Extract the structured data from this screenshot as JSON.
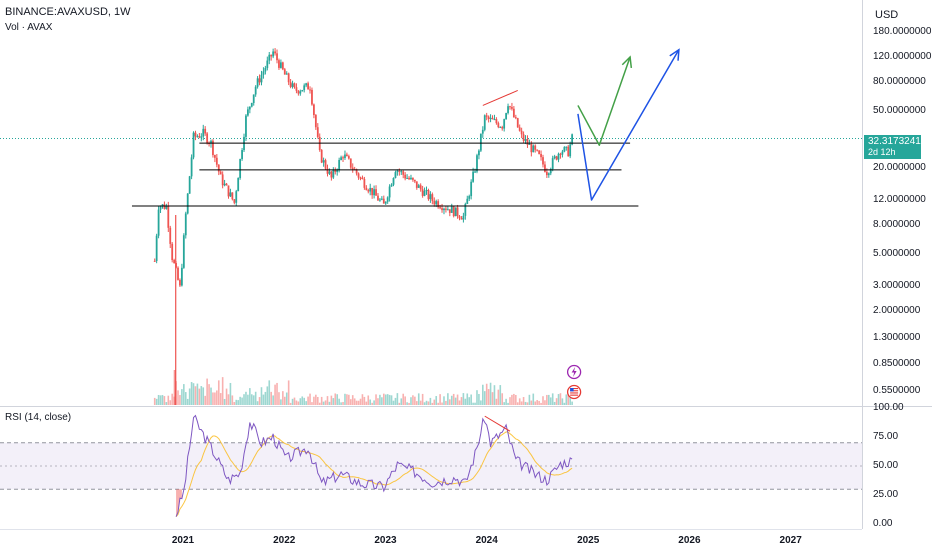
{
  "header": {
    "symbol": "BINANCE:AVAXUSD, 1W",
    "volume_label": "Vol · AVAX",
    "currency": "USD"
  },
  "last_price": {
    "value": "32.3173241",
    "countdown": "2d 12h"
  },
  "price_axis": {
    "labels": [
      "180.0000000",
      "120.0000000",
      "80.0000000",
      "50.0000000",
      "20.0000000",
      "12.0000000",
      "8.0000000",
      "5.0000000",
      "3.0000000",
      "2.0000000",
      "1.3000000",
      "0.8500000",
      "0.5500000"
    ]
  },
  "rsi": {
    "label": "RSI (14, close)",
    "axis_labels": [
      "100.00",
      "75.00",
      "50.00",
      "25.00",
      "0.00"
    ],
    "upper_band": 70,
    "lower_band": 30,
    "middle_band": 50
  },
  "time_axis": {
    "labels": [
      "2021",
      "2022",
      "2023",
      "2024",
      "2025",
      "2026",
      "2027"
    ]
  },
  "colors": {
    "up": "#26a69a",
    "down": "#ef5350",
    "rsi_line": "#7e57c2",
    "rsi_ma": "#fbc02d",
    "projection_green": "#43a047",
    "projection_blue": "#1e53e5",
    "divergence": "#e53935",
    "support_line": "#000000"
  },
  "event_icons": [
    "lightning-icon",
    "us-flag-icon"
  ],
  "chart_data": {
    "type": "candlestick",
    "title": "",
    "y_scale": "log",
    "price_range": [
      0.55,
      180
    ],
    "time_range": [
      "2020-09",
      "2027-12"
    ],
    "weekly_closes": [
      {
        "date": "2020-09-21",
        "close": 4.5
      },
      {
        "date": "2020-10-05",
        "close": 11.0
      },
      {
        "date": "2020-11-02",
        "close": 10.8
      },
      {
        "date": "2020-11-23",
        "close": 4.8
      },
      {
        "date": "2020-12-21",
        "close": 2.9
      },
      {
        "date": "2021-01-11",
        "close": 9.5
      },
      {
        "date": "2021-02-08",
        "close": 33.0
      },
      {
        "date": "2021-03-15",
        "close": 35.0
      },
      {
        "date": "2021-04-12",
        "close": 30.0
      },
      {
        "date": "2021-05-17",
        "close": 17.0
      },
      {
        "date": "2021-07-05",
        "close": 11.5
      },
      {
        "date": "2021-08-16",
        "close": 45.0
      },
      {
        "date": "2021-09-20",
        "close": 75.0
      },
      {
        "date": "2021-11-22",
        "close": 130.0
      },
      {
        "date": "2022-01-03",
        "close": 90.0
      },
      {
        "date": "2022-02-07",
        "close": 70.0
      },
      {
        "date": "2022-04-04",
        "close": 75.0
      },
      {
        "date": "2022-05-09",
        "close": 25.0
      },
      {
        "date": "2022-06-20",
        "close": 17.0
      },
      {
        "date": "2022-08-01",
        "close": 25.0
      },
      {
        "date": "2022-10-03",
        "close": 17.0
      },
      {
        "date": "2022-12-26",
        "close": 11.0
      },
      {
        "date": "2023-02-06",
        "close": 20.0
      },
      {
        "date": "2023-04-10",
        "close": 16.0
      },
      {
        "date": "2023-06-19",
        "close": 12.0
      },
      {
        "date": "2023-10-09",
        "close": 9.2
      },
      {
        "date": "2023-11-20",
        "close": 20.0
      },
      {
        "date": "2023-12-25",
        "close": 45.0
      },
      {
        "date": "2024-02-26",
        "close": 40.0
      },
      {
        "date": "2024-03-18",
        "close": 58.0
      },
      {
        "date": "2024-05-06",
        "close": 33.0
      },
      {
        "date": "2024-07-08",
        "close": 24.0
      },
      {
        "date": "2024-08-05",
        "close": 19.0
      },
      {
        "date": "2024-09-23",
        "close": 27.0
      },
      {
        "date": "2024-10-21",
        "close": 26.0
      },
      {
        "date": "2024-11-04",
        "close": 32.3173241
      }
    ],
    "horizontal_levels": [
      {
        "price": 30.0,
        "from": "2021-03",
        "to": "2025-06"
      },
      {
        "price": 19.5,
        "from": "2021-03",
        "to": "2025-05"
      },
      {
        "price": 10.9,
        "from": "2020-07",
        "to": "2025-07"
      }
    ],
    "projections": [
      {
        "name": "",
        "color": "green",
        "points": [
          [
            "2024-11-25",
            55
          ],
          [
            "2025-02-10",
            29
          ],
          [
            "2025-06-01",
            120
          ]
        ]
      },
      {
        "name": "",
        "color": "blue",
        "points": [
          [
            "2024-11-25",
            48
          ],
          [
            "2025-01-13",
            12
          ],
          [
            "2025-11-24",
            135
          ]
        ]
      }
    ],
    "rsi_series": [
      {
        "date": "2020-12-07",
        "value": 8
      },
      {
        "date": "2021-01-04",
        "value": 28
      },
      {
        "date": "2021-02-08",
        "value": 92
      },
      {
        "date": "2021-03-08",
        "value": 80
      },
      {
        "date": "2021-04-19",
        "value": 63
      },
      {
        "date": "2021-06-14",
        "value": 38
      },
      {
        "date": "2021-07-26",
        "value": 44
      },
      {
        "date": "2021-08-30",
        "value": 88
      },
      {
        "date": "2021-10-11",
        "value": 70
      },
      {
        "date": "2021-11-22",
        "value": 75
      },
      {
        "date": "2022-01-10",
        "value": 56
      },
      {
        "date": "2022-03-28",
        "value": 66
      },
      {
        "date": "2022-05-16",
        "value": 35
      },
      {
        "date": "2022-07-25",
        "value": 43
      },
      {
        "date": "2022-10-03",
        "value": 35
      },
      {
        "date": "2022-12-26",
        "value": 32
      },
      {
        "date": "2023-02-13",
        "value": 51
      },
      {
        "date": "2023-04-17",
        "value": 45
      },
      {
        "date": "2023-06-19",
        "value": 36
      },
      {
        "date": "2023-09-11",
        "value": 40
      },
      {
        "date": "2023-10-16",
        "value": 35
      },
      {
        "date": "2023-11-20",
        "value": 60
      },
      {
        "date": "2023-12-25",
        "value": 92
      },
      {
        "date": "2024-01-15",
        "value": 70
      },
      {
        "date": "2024-03-11",
        "value": 82
      },
      {
        "date": "2024-04-15",
        "value": 55
      },
      {
        "date": "2024-06-24",
        "value": 43
      },
      {
        "date": "2024-08-05",
        "value": 38
      },
      {
        "date": "2024-09-23",
        "value": 52
      },
      {
        "date": "2024-11-04",
        "value": 55
      }
    ]
  }
}
